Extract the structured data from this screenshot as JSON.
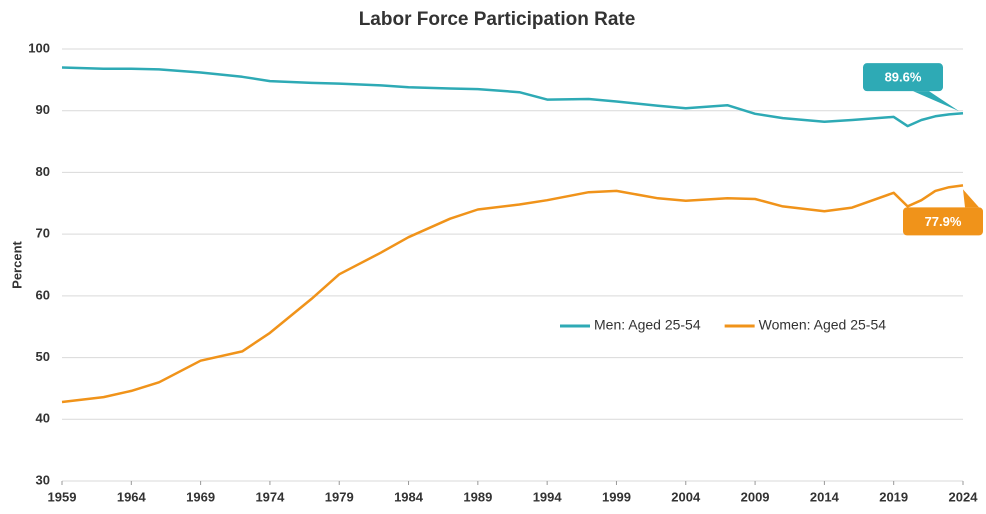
{
  "chart_data": {
    "type": "line",
    "title": "Labor Force Participation Rate",
    "ylabel": "Percent",
    "x": [
      1959,
      1962,
      1964,
      1966,
      1969,
      1972,
      1974,
      1977,
      1979,
      1982,
      1984,
      1987,
      1989,
      1992,
      1994,
      1997,
      1999,
      2002,
      2004,
      2007,
      2009,
      2011,
      2014,
      2016,
      2019,
      2020,
      2021,
      2022,
      2023,
      2024
    ],
    "series": [
      {
        "name": "Men: Aged 25-54",
        "color": "#2eaab5",
        "values": [
          97,
          96.8,
          96.8,
          96.7,
          96.2,
          95.5,
          94.8,
          94.5,
          94.4,
          94.1,
          93.8,
          93.6,
          93.5,
          93,
          91.8,
          91.9,
          91.5,
          90.8,
          90.4,
          90.9,
          89.5,
          88.8,
          88.2,
          88.5,
          89.0,
          87.5,
          88.5,
          89.1,
          89.4,
          89.6
        ],
        "value_labels": [
          null,
          null,
          null,
          null,
          null,
          null,
          null,
          null,
          null,
          null,
          null,
          null,
          null,
          null,
          null,
          null,
          null,
          null,
          null,
          null,
          null,
          null,
          null,
          null,
          null,
          null,
          null,
          null,
          null,
          "89.6%"
        ]
      },
      {
        "name": "Women: Aged 25-54",
        "color": "#f0931a",
        "values": [
          42.8,
          43.6,
          44.6,
          46,
          49.5,
          51,
          54,
          59.5,
          63.5,
          67,
          69.5,
          72.5,
          74,
          74.8,
          75.5,
          76.8,
          77,
          75.8,
          75.4,
          75.8,
          75.7,
          74.5,
          73.7,
          74.3,
          76.7,
          74.5,
          75.5,
          77,
          77.6,
          77.9
        ],
        "value_labels": [
          null,
          null,
          null,
          null,
          null,
          null,
          null,
          null,
          null,
          null,
          null,
          null,
          null,
          null,
          null,
          null,
          null,
          null,
          null,
          null,
          null,
          null,
          null,
          null,
          null,
          null,
          null,
          null,
          null,
          "77.9%"
        ]
      }
    ],
    "xlim": [
      1959,
      2024
    ],
    "xticks": [
      1959,
      1964,
      1969,
      1974,
      1979,
      1984,
      1989,
      1994,
      1999,
      2004,
      2009,
      2014,
      2019,
      2024
    ],
    "ylim": [
      30,
      100
    ],
    "yticks": [
      30,
      40,
      50,
      60,
      70,
      80,
      90,
      100
    ],
    "grid": true
  }
}
